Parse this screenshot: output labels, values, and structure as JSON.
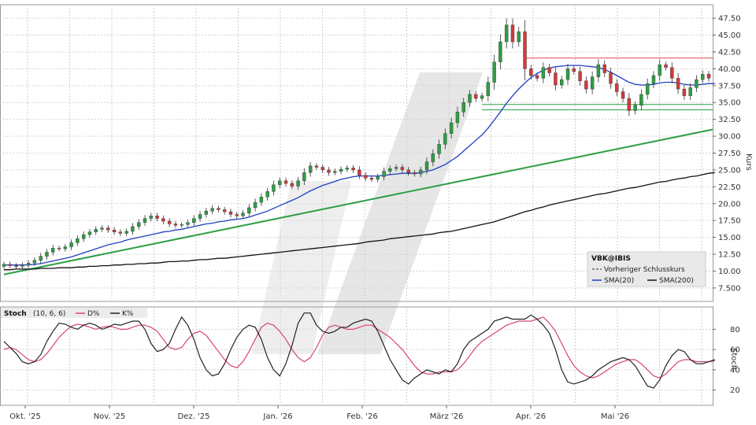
{
  "chart_data": [
    {
      "type": "candlestick",
      "panel": "price",
      "ylabel": "Kurs",
      "ylim": [
        5.5,
        49.5
      ],
      "yticks": [
        "7.500",
        "10.00",
        "12.50",
        "15.00",
        "17.50",
        "20.00",
        "22.50",
        "25.00",
        "27.50",
        "30.00",
        "32.50",
        "35.00",
        "37.50",
        "40.00",
        "42.50",
        "45.00",
        "47.50"
      ],
      "xticks": [
        "Okt. '25",
        "Nov. '25",
        "Dez. '25",
        "Jan. '26",
        "Feb. '26",
        "März '26",
        "Apr. '26",
        "Mai '26"
      ],
      "close": [
        11.0,
        10.8,
        10.7,
        10.9,
        11.2,
        11.6,
        12.2,
        12.8,
        13.4,
        13.3,
        13.6,
        14.2,
        14.8,
        15.4,
        15.8,
        16.2,
        16.4,
        16.1,
        15.8,
        15.6,
        15.9,
        16.6,
        17.2,
        17.8,
        18.2,
        17.8,
        17.4,
        17.0,
        16.8,
        16.9,
        17.2,
        17.8,
        18.4,
        18.9,
        19.3,
        19.1,
        18.8,
        18.4,
        18.2,
        18.6,
        19.4,
        20.2,
        21.0,
        21.8,
        22.8,
        23.4,
        23.0,
        22.6,
        23.4,
        24.6,
        25.6,
        25.4,
        25.0,
        24.6,
        24.8,
        25.1,
        25.3,
        25.0,
        24.2,
        23.8,
        23.6,
        24.0,
        24.8,
        25.2,
        25.4,
        25.0,
        24.6,
        24.4,
        25.0,
        26.2,
        27.4,
        28.8,
        30.4,
        32.0,
        33.6,
        35.0,
        36.2,
        35.6,
        36.0,
        38.0,
        41.0,
        44.0,
        46.5,
        44.0,
        45.5,
        40.0,
        39.0,
        38.6,
        40.2,
        39.4,
        37.6,
        38.4,
        40.0,
        39.6,
        38.2,
        37.0,
        38.8,
        40.6,
        39.4,
        37.8,
        36.6,
        35.6,
        33.8,
        34.6,
        36.2,
        37.8,
        39.0,
        40.6,
        40.2,
        38.6,
        37.0,
        36.0,
        37.2,
        38.4,
        39.2,
        38.6
      ],
      "overlays": [
        {
          "name": "SMA(20)",
          "color": "#1f3fbf",
          "values": [
            10.9,
            10.9,
            10.9,
            10.9,
            10.9,
            11.0,
            11.1,
            11.3,
            11.5,
            11.7,
            11.9,
            12.1,
            12.4,
            12.7,
            13.0,
            13.3,
            13.6,
            13.9,
            14.1,
            14.3,
            14.6,
            14.8,
            15.0,
            15.2,
            15.4,
            15.6,
            15.8,
            15.9,
            16.1,
            16.2,
            16.4,
            16.6,
            16.8,
            17.0,
            17.1,
            17.3,
            17.4,
            17.6,
            17.7,
            17.8,
            18.0,
            18.3,
            18.6,
            18.9,
            19.3,
            19.7,
            20.1,
            20.5,
            20.9,
            21.4,
            21.9,
            22.3,
            22.7,
            23.0,
            23.3,
            23.6,
            23.8,
            24.0,
            24.1,
            24.1,
            24.1,
            24.1,
            24.2,
            24.3,
            24.4,
            24.5,
            24.5,
            24.5,
            24.6,
            24.8,
            25.0,
            25.4,
            25.8,
            26.4,
            27.0,
            27.8,
            28.6,
            29.4,
            30.2,
            31.2,
            32.4,
            33.6,
            34.9,
            36.0,
            37.0,
            37.9,
            38.7,
            39.3,
            39.8,
            40.1,
            40.3,
            40.4,
            40.5,
            40.5,
            40.5,
            40.4,
            40.3,
            40.2,
            39.9,
            39.5,
            39.0,
            38.5,
            38.0,
            37.7,
            37.6,
            37.6,
            37.7,
            37.9,
            38.0,
            38.0,
            37.9,
            37.7,
            37.6,
            37.6,
            37.7,
            37.8,
            37.8
          ]
        },
        {
          "name": "SMA(200)",
          "color": "#111111",
          "values": [
            10.2,
            10.2,
            10.3,
            10.3,
            10.3,
            10.3,
            10.4,
            10.4,
            10.4,
            10.5,
            10.5,
            10.5,
            10.6,
            10.6,
            10.7,
            10.7,
            10.8,
            10.8,
            10.9,
            10.9,
            11.0,
            11.0,
            11.1,
            11.1,
            11.2,
            11.2,
            11.3,
            11.4,
            11.4,
            11.5,
            11.5,
            11.6,
            11.7,
            11.7,
            11.8,
            11.9,
            11.9,
            12.0,
            12.1,
            12.2,
            12.3,
            12.4,
            12.5,
            12.6,
            12.7,
            12.8,
            12.9,
            13.0,
            13.1,
            13.2,
            13.3,
            13.4,
            13.5,
            13.6,
            13.7,
            13.8,
            13.9,
            14.0,
            14.1,
            14.3,
            14.4,
            14.5,
            14.6,
            14.8,
            14.9,
            15.0,
            15.1,
            15.2,
            15.3,
            15.4,
            15.5,
            15.7,
            15.8,
            15.9,
            16.1,
            16.3,
            16.5,
            16.7,
            16.9,
            17.1,
            17.3,
            17.6,
            17.9,
            18.2,
            18.5,
            18.8,
            19.0,
            19.3,
            19.5,
            19.8,
            20.0,
            20.2,
            20.4,
            20.6,
            20.8,
            21.0,
            21.2,
            21.4,
            21.5,
            21.7,
            21.9,
            22.1,
            22.3,
            22.4,
            22.6,
            22.8,
            23.0,
            23.2,
            23.3,
            23.5,
            23.7,
            23.8,
            24.0,
            24.1,
            24.3,
            24.5,
            24.6
          ]
        }
      ],
      "trendline": {
        "color": "#2e9e44",
        "from": [
          0,
          9.5
        ],
        "to": [
          116,
          31.0
        ]
      },
      "horizontal_lines": [
        {
          "value": 41.6,
          "color": "#e24646"
        },
        {
          "value": 34.7,
          "color": "#2e9e44"
        },
        {
          "value": 33.9,
          "color": "#2e9e44"
        }
      ],
      "legend": {
        "title": "VBK@IBIS",
        "items": [
          {
            "label": "Vorheriger Schlusskurs",
            "color": "#555555",
            "style": "dashed"
          },
          {
            "label": "SMA(20)",
            "color": "#1f3fbf"
          },
          {
            "label": "SMA(200)",
            "color": "#111111"
          }
        ]
      }
    },
    {
      "type": "line",
      "panel": "stoch",
      "title": "Stoch",
      "params": "(10, 6, 6)",
      "ylabel": "Stoch",
      "ylim": [
        5,
        102
      ],
      "yticks": [
        20,
        40,
        60,
        80
      ],
      "series": [
        {
          "name": "D%",
          "color": "#d6476b",
          "values": [
            60,
            62,
            60,
            55,
            50,
            48,
            50,
            56,
            64,
            72,
            78,
            83,
            85,
            84,
            82,
            80,
            82,
            83,
            82,
            80,
            80,
            82,
            84,
            84,
            82,
            78,
            70,
            62,
            60,
            62,
            70,
            76,
            78,
            74,
            66,
            58,
            50,
            44,
            42,
            48,
            58,
            70,
            82,
            86,
            84,
            78,
            70,
            60,
            52,
            48,
            52,
            62,
            74,
            82,
            84,
            82,
            80,
            80,
            82,
            84,
            84,
            80,
            76,
            72,
            66,
            60,
            52,
            44,
            38,
            36,
            36,
            38,
            38,
            38,
            40,
            46,
            54,
            62,
            68,
            72,
            76,
            80,
            84,
            86,
            88,
            88,
            88,
            90,
            92,
            86,
            78,
            66,
            54,
            44,
            38,
            34,
            32,
            34,
            38,
            42,
            46,
            48,
            50,
            50,
            46,
            40,
            34,
            32,
            36,
            42,
            48,
            50,
            50,
            48,
            48,
            48,
            49
          ]
        },
        {
          "name": "K%",
          "color": "#222222",
          "values": [
            68,
            62,
            56,
            48,
            46,
            48,
            55,
            68,
            78,
            86,
            85,
            82,
            80,
            84,
            86,
            84,
            80,
            82,
            85,
            84,
            86,
            88,
            88,
            80,
            66,
            58,
            60,
            66,
            80,
            92,
            84,
            70,
            52,
            40,
            34,
            36,
            46,
            60,
            72,
            80,
            84,
            82,
            70,
            52,
            40,
            34,
            46,
            64,
            86,
            96,
            96,
            84,
            78,
            76,
            78,
            82,
            82,
            86,
            88,
            90,
            88,
            78,
            64,
            50,
            40,
            30,
            26,
            32,
            36,
            40,
            38,
            36,
            40,
            38,
            46,
            60,
            68,
            72,
            76,
            80,
            88,
            90,
            92,
            90,
            90,
            90,
            94,
            90,
            84,
            76,
            60,
            40,
            28,
            26,
            28,
            30,
            34,
            40,
            44,
            48,
            50,
            52,
            50,
            44,
            34,
            24,
            22,
            30,
            44,
            54,
            60,
            58,
            50,
            46,
            46,
            48,
            50
          ]
        }
      ]
    }
  ]
}
